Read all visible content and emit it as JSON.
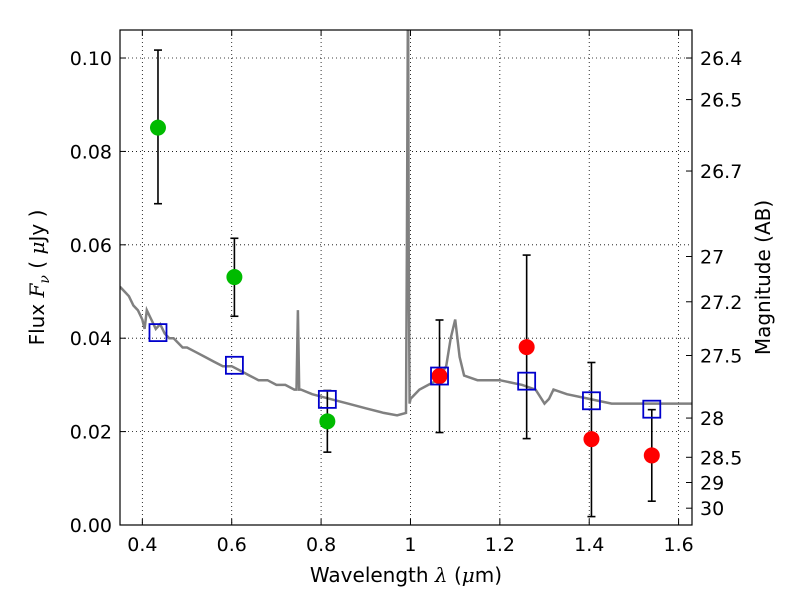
{
  "chart_data": {
    "type": "scatter",
    "xlabel": "Wavelength  λ (μm)",
    "ylabel": "Flux  Fν  ( μJy )",
    "ylabel_right": "Magnitude (AB)",
    "xlim": [
      0.35,
      1.63
    ],
    "ylim": [
      0.0,
      0.106
    ],
    "grid": true,
    "x_ticks": [
      0.4,
      0.6,
      0.8,
      1.0,
      1.2,
      1.4,
      1.6
    ],
    "x_tick_labels": [
      "0.4",
      "0.6",
      "0.8",
      "1",
      "1.2",
      "1.4",
      "1.6"
    ],
    "y_ticks": [
      0.0,
      0.02,
      0.04,
      0.06,
      0.08,
      0.1
    ],
    "y_tick_labels": [
      "0.00",
      "0.02",
      "0.04",
      "0.06",
      "0.08",
      "0.10"
    ],
    "right_ticks": [
      {
        "label": "26.4",
        "flux": 0.1
      },
      {
        "label": "26.5",
        "flux": 0.0911
      },
      {
        "label": "26.7",
        "flux": 0.0758
      },
      {
        "label": "27",
        "flux": 0.0575
      },
      {
        "label": "27.2",
        "flux": 0.0478
      },
      {
        "label": "27.5",
        "flux": 0.0363
      },
      {
        "label": "28",
        "flux": 0.0229
      },
      {
        "label": "28.5",
        "flux": 0.0145
      },
      {
        "label": "29",
        "flux": 0.0091
      },
      {
        "label": "30",
        "flux": 0.0036
      }
    ],
    "series": [
      {
        "color": "#00bb00",
        "marker": "circle",
        "points": [
          {
            "x": 0.435,
            "y": 0.0851,
            "err_lo": 0.0688,
            "err_hi": 0.1017
          },
          {
            "x": 0.606,
            "y": 0.0531,
            "err_lo": 0.0447,
            "err_hi": 0.0614
          },
          {
            "x": 0.814,
            "y": 0.0222,
            "err_lo": 0.0156,
            "err_hi": 0.0288
          }
        ]
      },
      {
        "color": "#ff0000",
        "marker": "circle",
        "points": [
          {
            "x": 1.065,
            "y": 0.0319,
            "err_lo": 0.0198,
            "err_hi": 0.0439
          },
          {
            "x": 1.26,
            "y": 0.0381,
            "err_lo": 0.0185,
            "err_hi": 0.0578
          },
          {
            "x": 1.405,
            "y": 0.0184,
            "err_lo": 0.0018,
            "err_hi": 0.0348
          },
          {
            "x": 1.54,
            "y": 0.0149,
            "err_lo": 0.0051,
            "err_hi": 0.0247
          }
        ]
      },
      {
        "color": "#0000cc",
        "marker": "open-square",
        "points": [
          {
            "x": 0.435,
            "y": 0.0412
          },
          {
            "x": 0.606,
            "y": 0.0342
          },
          {
            "x": 0.814,
            "y": 0.0269
          },
          {
            "x": 1.065,
            "y": 0.0319
          },
          {
            "x": 1.26,
            "y": 0.0308
          },
          {
            "x": 1.405,
            "y": 0.0266
          },
          {
            "x": 1.54,
            "y": 0.0248
          }
        ]
      }
    ],
    "model_spectrum": {
      "color": "#808080",
      "x": [
        0.35,
        0.36,
        0.37,
        0.38,
        0.39,
        0.4,
        0.405,
        0.41,
        0.42,
        0.43,
        0.44,
        0.45,
        0.46,
        0.47,
        0.48,
        0.49,
        0.5,
        0.52,
        0.54,
        0.56,
        0.58,
        0.6,
        0.62,
        0.64,
        0.66,
        0.68,
        0.7,
        0.72,
        0.74,
        0.745,
        0.748,
        0.751,
        0.755,
        0.78,
        0.82,
        0.86,
        0.9,
        0.94,
        0.97,
        0.99,
        0.992,
        0.994,
        0.995,
        0.996,
        0.998,
        1.0,
        1.02,
        1.04,
        1.06,
        1.08,
        1.09,
        1.1,
        1.11,
        1.12,
        1.15,
        1.18,
        1.2,
        1.25,
        1.28,
        1.3,
        1.31,
        1.32,
        1.35,
        1.4,
        1.45,
        1.5,
        1.55,
        1.6,
        1.63
      ],
      "y": [
        0.051,
        0.05,
        0.049,
        0.047,
        0.046,
        0.044,
        0.042,
        0.046,
        0.044,
        0.042,
        0.043,
        0.041,
        0.04,
        0.04,
        0.039,
        0.038,
        0.038,
        0.037,
        0.036,
        0.035,
        0.034,
        0.034,
        0.033,
        0.032,
        0.031,
        0.031,
        0.03,
        0.03,
        0.029,
        0.029,
        0.046,
        0.029,
        0.029,
        0.028,
        0.027,
        0.026,
        0.025,
        0.024,
        0.0235,
        0.024,
        0.06,
        0.106,
        0.106,
        0.06,
        0.026,
        0.027,
        0.029,
        0.03,
        0.031,
        0.034,
        0.04,
        0.044,
        0.036,
        0.032,
        0.031,
        0.031,
        0.031,
        0.03,
        0.029,
        0.026,
        0.027,
        0.029,
        0.028,
        0.027,
        0.026,
        0.026,
        0.026,
        0.026,
        0.026
      ]
    }
  }
}
